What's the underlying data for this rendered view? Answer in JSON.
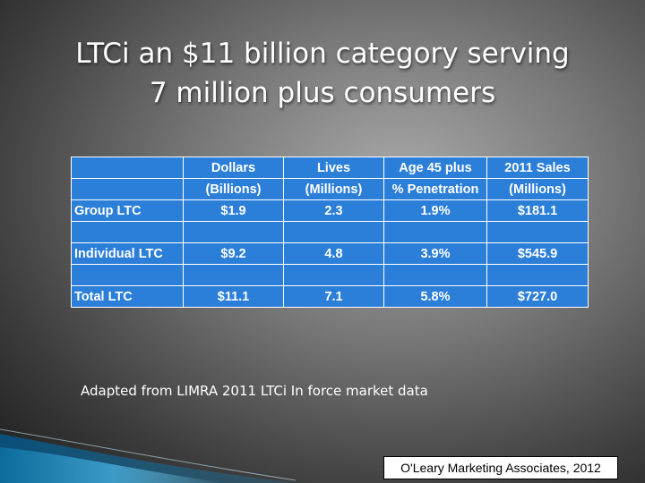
{
  "title": {
    "line1": "LTCi an $11 billion category serving",
    "line2": "7 million plus consumers"
  },
  "table": {
    "header_row1": [
      "",
      "Dollars",
      "Lives",
      "Age 45 plus",
      "2011 Sales"
    ],
    "header_row2": [
      "",
      "(Billions)",
      "(Millions)",
      "% Penetration",
      "(Millions)"
    ],
    "rows": [
      [
        "Group LTC",
        "$1.9",
        "2.3",
        "1.9%",
        "$181.1"
      ],
      [
        "Individual LTC",
        "$9.2",
        "4.8",
        "3.9%",
        "$545.9"
      ],
      [
        "Total LTC",
        "$11.1",
        "7.1",
        "5.8%",
        "$727.0"
      ]
    ],
    "colors": {
      "cell_fill": "#2c7fd9",
      "border": "#ffffff"
    }
  },
  "source_text": "Adapted from LIMRA 2011 LTCi  In force market data",
  "credit_text": "O'Leary Marketing Associates, 2012"
}
